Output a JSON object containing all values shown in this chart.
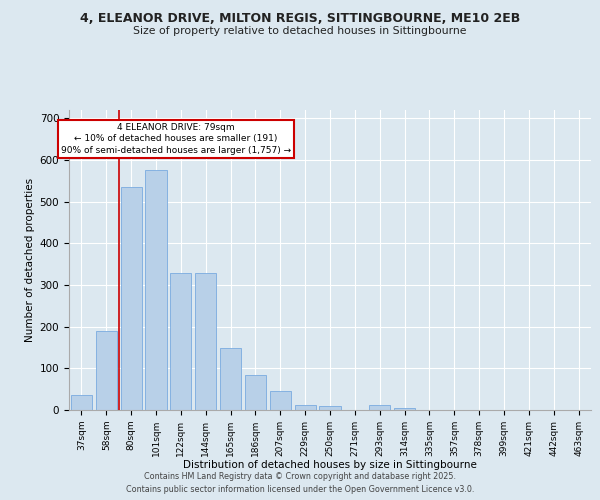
{
  "title_line1": "4, ELEANOR DRIVE, MILTON REGIS, SITTINGBOURNE, ME10 2EB",
  "title_line2": "Size of property relative to detached houses in Sittingbourne",
  "xlabel": "Distribution of detached houses by size in Sittingbourne",
  "ylabel": "Number of detached properties",
  "categories": [
    "37sqm",
    "58sqm",
    "80sqm",
    "101sqm",
    "122sqm",
    "144sqm",
    "165sqm",
    "186sqm",
    "207sqm",
    "229sqm",
    "250sqm",
    "271sqm",
    "293sqm",
    "314sqm",
    "335sqm",
    "357sqm",
    "378sqm",
    "399sqm",
    "421sqm",
    "442sqm",
    "463sqm"
  ],
  "values": [
    35,
    190,
    535,
    575,
    330,
    330,
    150,
    85,
    45,
    12,
    10,
    0,
    12,
    5,
    0,
    0,
    0,
    0,
    0,
    0,
    0
  ],
  "bar_color": "#b8d0e8",
  "bar_edge_color": "#7aabe0",
  "vline_x": 1.5,
  "vline_color": "#cc0000",
  "annotation_line1": "4 ELEANOR DRIVE: 79sqm",
  "annotation_line2": "← 10% of detached houses are smaller (191)",
  "annotation_line3": "90% of semi-detached houses are larger (1,757) →",
  "annotation_box_color": "#ffffff",
  "annotation_box_edge_color": "#cc0000",
  "ylim": [
    0,
    720
  ],
  "yticks": [
    0,
    100,
    200,
    300,
    400,
    500,
    600,
    700
  ],
  "fig_bg_color": "#dce8f0",
  "plot_bg_color": "#dce8f0",
  "footer_line1": "Contains HM Land Registry data © Crown copyright and database right 2025.",
  "footer_line2": "Contains public sector information licensed under the Open Government Licence v3.0."
}
